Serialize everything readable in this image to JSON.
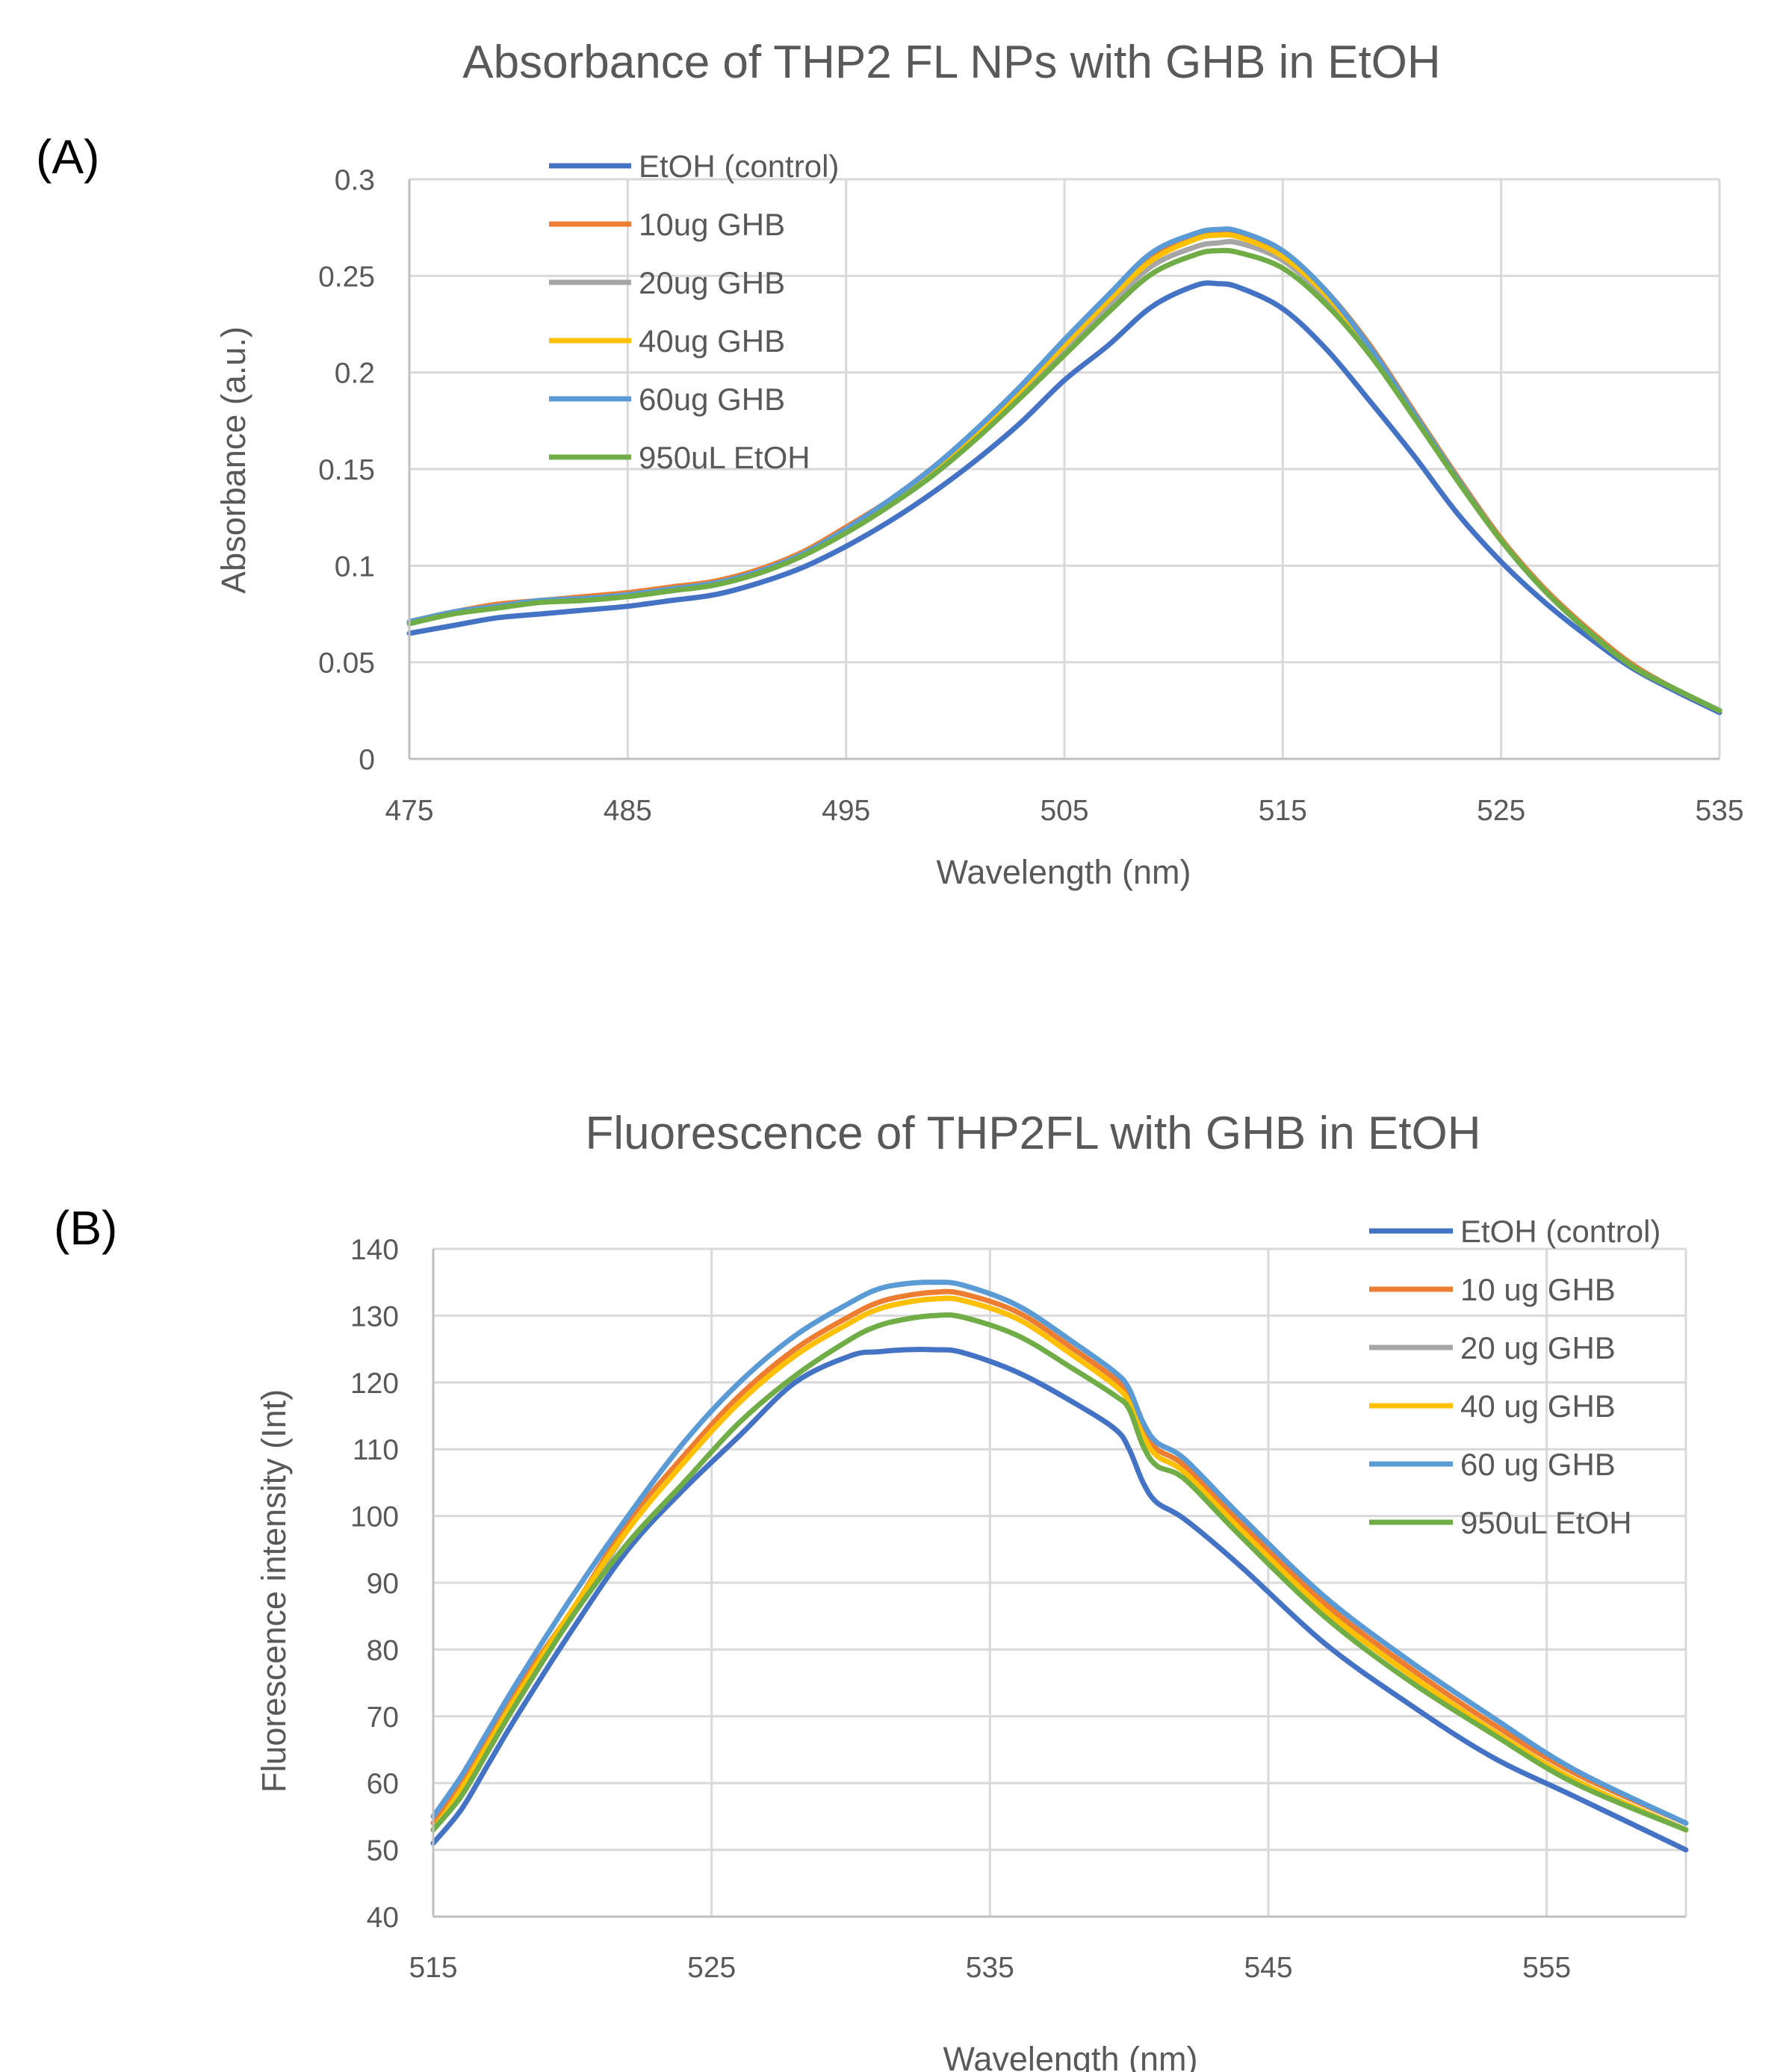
{
  "chart_data": [
    {
      "type": "line",
      "panel_label": "(A)",
      "title": "Absorbance of THP2 FL NPs with GHB in EtOH",
      "xlabel": "Wavelength (nm)",
      "ylabel": "Absorbance (a.u.)",
      "xlim": [
        475,
        535
      ],
      "ylim": [
        0,
        0.3
      ],
      "xticks": [
        475,
        485,
        495,
        505,
        515,
        525,
        535
      ],
      "xtick_labels": [
        "475",
        "485",
        "495",
        "505",
        "515",
        "525",
        "535"
      ],
      "yticks": [
        0,
        0.05,
        0.1,
        0.15,
        0.2,
        0.25,
        0.3
      ],
      "ytick_labels": [
        "0",
        "0.05",
        "0.1",
        "0.15",
        "0.2",
        "0.25",
        "0.3"
      ],
      "grid": true,
      "legend_position": "top-left",
      "x": [
        475,
        477,
        479,
        481,
        483,
        485,
        487,
        489,
        491,
        493,
        495,
        497,
        499,
        501,
        503,
        505,
        507,
        509,
        511,
        512,
        513,
        515,
        517,
        519,
        521,
        523,
        525,
        527,
        529,
        531,
        533,
        535
      ],
      "series": [
        {
          "name": "EtOH (control)",
          "color": "#4472c4",
          "values": [
            0.065,
            0.069,
            0.073,
            0.075,
            0.077,
            0.079,
            0.082,
            0.085,
            0.091,
            0.099,
            0.11,
            0.123,
            0.138,
            0.155,
            0.174,
            0.196,
            0.214,
            0.234,
            0.245,
            0.246,
            0.244,
            0.233,
            0.212,
            0.185,
            0.157,
            0.127,
            0.102,
            0.081,
            0.063,
            0.047,
            0.035,
            0.024
          ]
        },
        {
          "name": "10ug GHB",
          "color": "#ed7d31",
          "values": [
            0.071,
            0.076,
            0.08,
            0.082,
            0.084,
            0.086,
            0.089,
            0.092,
            0.098,
            0.107,
            0.12,
            0.134,
            0.151,
            0.17,
            0.192,
            0.215,
            0.238,
            0.26,
            0.27,
            0.272,
            0.272,
            0.262,
            0.242,
            0.214,
            0.18,
            0.146,
            0.114,
            0.088,
            0.067,
            0.049,
            0.036,
            0.025
          ]
        },
        {
          "name": "20ug GHB",
          "color": "#a5a5a5",
          "values": [
            0.071,
            0.076,
            0.079,
            0.082,
            0.083,
            0.085,
            0.088,
            0.091,
            0.097,
            0.106,
            0.118,
            0.132,
            0.149,
            0.168,
            0.189,
            0.212,
            0.234,
            0.255,
            0.265,
            0.267,
            0.267,
            0.258,
            0.238,
            0.211,
            0.178,
            0.144,
            0.113,
            0.087,
            0.066,
            0.048,
            0.036,
            0.025
          ]
        },
        {
          "name": "40ug GHB",
          "color": "#ffc000",
          "values": [
            0.071,
            0.076,
            0.079,
            0.082,
            0.083,
            0.085,
            0.088,
            0.091,
            0.097,
            0.106,
            0.119,
            0.133,
            0.15,
            0.169,
            0.191,
            0.214,
            0.237,
            0.258,
            0.269,
            0.271,
            0.27,
            0.26,
            0.24,
            0.212,
            0.179,
            0.145,
            0.113,
            0.087,
            0.066,
            0.048,
            0.036,
            0.025
          ]
        },
        {
          "name": "60ug GHB",
          "color": "#5b9bd5",
          "values": [
            0.071,
            0.076,
            0.079,
            0.082,
            0.083,
            0.085,
            0.088,
            0.091,
            0.097,
            0.106,
            0.119,
            0.134,
            0.151,
            0.171,
            0.193,
            0.217,
            0.24,
            0.262,
            0.272,
            0.274,
            0.273,
            0.263,
            0.242,
            0.213,
            0.179,
            0.145,
            0.113,
            0.087,
            0.066,
            0.048,
            0.036,
            0.025
          ]
        },
        {
          "name": "950uL EtOH",
          "color": "#70ad47",
          "values": [
            0.07,
            0.075,
            0.078,
            0.081,
            0.082,
            0.084,
            0.087,
            0.09,
            0.096,
            0.105,
            0.117,
            0.131,
            0.147,
            0.166,
            0.187,
            0.209,
            0.231,
            0.251,
            0.261,
            0.263,
            0.262,
            0.254,
            0.235,
            0.209,
            0.177,
            0.144,
            0.113,
            0.087,
            0.066,
            0.048,
            0.036,
            0.025
          ]
        }
      ]
    },
    {
      "type": "line",
      "panel_label": "(B)",
      "title": "Fluorescence of THP2FL with GHB in EtOH",
      "xlabel": "Wavelength (nm)",
      "ylabel": "Fluorescence intensity (Int)",
      "xlim": [
        515,
        560
      ],
      "ylim": [
        40,
        140
      ],
      "xticks": [
        515,
        525,
        535,
        545,
        555
      ],
      "xtick_labels": [
        "515",
        "525",
        "535",
        "545",
        "555"
      ],
      "yticks": [
        40,
        50,
        60,
        70,
        80,
        90,
        100,
        110,
        120,
        130,
        140
      ],
      "ytick_labels": [
        "40",
        "50",
        "60",
        "70",
        "80",
        "90",
        "100",
        "110",
        "120",
        "130",
        "140"
      ],
      "grid": true,
      "legend_position": "top-right",
      "x": [
        515,
        516,
        517,
        518,
        520,
        522,
        524,
        526,
        528,
        530,
        531,
        532,
        533,
        534,
        536,
        538,
        539.5,
        540,
        540.5,
        541,
        542,
        544,
        547,
        550,
        553,
        556,
        560
      ],
      "series": [
        {
          "name": "EtOH (control)",
          "color": "#4472c4",
          "values": [
            51,
            56,
            63,
            70,
            83,
            95,
            104,
            112,
            120,
            124,
            124.6,
            124.9,
            124.9,
            124.5,
            121.5,
            117,
            113,
            110,
            105,
            102,
            99.5,
            92.5,
            81,
            72,
            64,
            58,
            50
          ]
        },
        {
          "name": "10 ug GHB",
          "color": "#ed7d31",
          "values": [
            54,
            60,
            67,
            74,
            86,
            99,
            109,
            118,
            125,
            130,
            132,
            133,
            133.5,
            133.3,
            130.5,
            125,
            120.5,
            118,
            113,
            110,
            107.5,
            99,
            87,
            77.5,
            69,
            61.5,
            54
          ]
        },
        {
          "name": "20 ug GHB",
          "color": "#a5a5a5",
          "values": [
            53,
            59,
            66,
            73,
            85,
            98,
            108,
            117,
            124,
            129,
            131,
            132,
            132.5,
            132.3,
            129.5,
            124,
            119.5,
            117,
            112,
            109,
            106.5,
            98,
            86,
            76.5,
            68,
            60.5,
            53
          ]
        },
        {
          "name": "40 ug GHB",
          "color": "#ffc000",
          "values": [
            53,
            59,
            66,
            73,
            86,
            98,
            108,
            117,
            124,
            129,
            131,
            132,
            132.5,
            132.3,
            129.5,
            124,
            119.5,
            117,
            112,
            109,
            106.5,
            98,
            86,
            76.5,
            68,
            60.5,
            53
          ]
        },
        {
          "name": "60 ug GHB",
          "color": "#5b9bd5",
          "values": [
            55,
            61,
            68,
            75,
            88,
            100,
            111,
            120,
            127,
            132,
            134,
            134.8,
            135,
            134.6,
            131.5,
            126,
            121.5,
            119,
            114,
            111,
            108.5,
            100,
            88,
            78.5,
            70,
            62,
            54
          ]
        },
        {
          "name": "950uL EtOH",
          "color": "#70ad47",
          "values": [
            53,
            58,
            65,
            72,
            85,
            96,
            105,
            114,
            121,
            126.5,
            128.5,
            129.5,
            130,
            129.8,
            127,
            122,
            118,
            116,
            110.5,
            107.5,
            105.5,
            97,
            85,
            75.5,
            67.5,
            60,
            53
          ]
        }
      ]
    }
  ]
}
